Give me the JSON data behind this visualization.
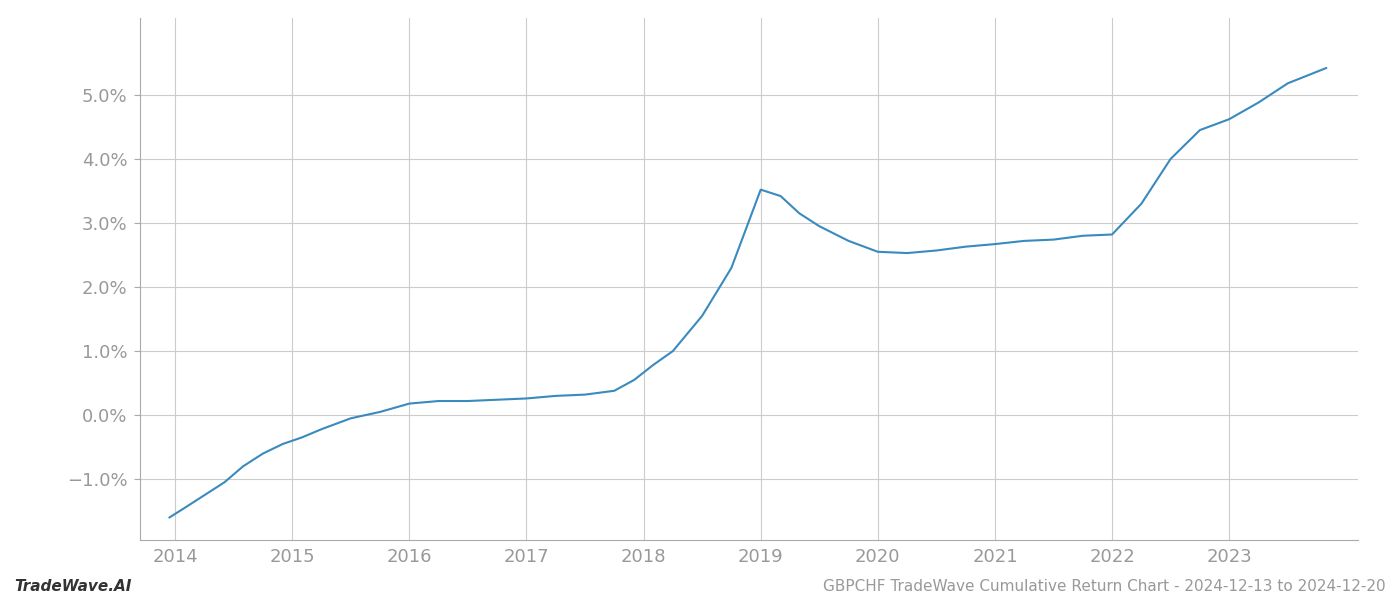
{
  "years": [
    2013.95,
    2014.08,
    2014.25,
    2014.42,
    2014.58,
    2014.75,
    2014.92,
    2015.08,
    2015.25,
    2015.5,
    2015.75,
    2016.0,
    2016.25,
    2016.5,
    2016.75,
    2017.0,
    2017.25,
    2017.5,
    2017.75,
    2017.92,
    2018.08,
    2018.25,
    2018.5,
    2018.75,
    2019.0,
    2019.17,
    2019.33,
    2019.5,
    2019.75,
    2020.0,
    2020.25,
    2020.5,
    2020.75,
    2021.0,
    2021.25,
    2021.5,
    2021.75,
    2022.0,
    2022.25,
    2022.5,
    2022.75,
    2023.0,
    2023.25,
    2023.5,
    2023.83
  ],
  "values": [
    -1.6,
    -1.45,
    -1.25,
    -1.05,
    -0.8,
    -0.6,
    -0.45,
    -0.35,
    -0.22,
    -0.05,
    0.05,
    0.18,
    0.22,
    0.22,
    0.24,
    0.26,
    0.3,
    0.32,
    0.38,
    0.55,
    0.78,
    1.0,
    1.55,
    2.3,
    3.52,
    3.42,
    3.15,
    2.95,
    2.72,
    2.55,
    2.53,
    2.57,
    2.63,
    2.67,
    2.72,
    2.74,
    2.8,
    2.82,
    3.3,
    4.0,
    4.45,
    4.62,
    4.88,
    5.18,
    5.42
  ],
  "line_color": "#3a8abf",
  "line_width": 1.5,
  "bg_color": "#ffffff",
  "grid_color": "#cccccc",
  "ytick_labels": [
    "−1.0%",
    "0.0%",
    "1.0%",
    "2.0%",
    "3.0%",
    "4.0%",
    "5.0%"
  ],
  "ytick_values": [
    -1.0,
    0.0,
    1.0,
    2.0,
    3.0,
    4.0,
    5.0
  ],
  "xtick_labels": [
    "2014",
    "2015",
    "2016",
    "2017",
    "2018",
    "2019",
    "2020",
    "2021",
    "2022",
    "2023"
  ],
  "xtick_values": [
    2014,
    2015,
    2016,
    2017,
    2018,
    2019,
    2020,
    2021,
    2022,
    2023
  ],
  "xlim": [
    2013.7,
    2024.1
  ],
  "ylim": [
    -1.95,
    6.2
  ],
  "footer_left": "TradeWave.AI",
  "footer_right": "GBPCHF TradeWave Cumulative Return Chart - 2024-12-13 to 2024-12-20",
  "tick_color": "#999999",
  "label_fontsize": 13,
  "footer_fontsize": 11
}
